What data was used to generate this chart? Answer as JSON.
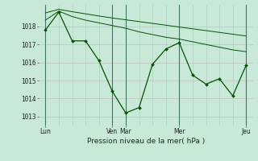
{
  "bg_color": "#c8e8d8",
  "grid_color_v": "#b0c8c0",
  "grid_color_h": "#c0b8b8",
  "line_color": "#005500",
  "xlabel": "Pression niveau de la mer( hPa )",
  "ylim": [
    1012.5,
    1019.2
  ],
  "yticks": [
    1013,
    1014,
    1015,
    1016,
    1017,
    1018
  ],
  "day_labels": [
    "Lun",
    "Ven",
    "Mar",
    "Mer",
    "Jeu"
  ],
  "day_x": [
    0,
    5,
    6,
    10,
    15
  ],
  "num_cols": 16,
  "line1_x": [
    0,
    1,
    2,
    3,
    4,
    5,
    6,
    7,
    8,
    9,
    10,
    11,
    12,
    13,
    14,
    15
  ],
  "line1_y": [
    1017.8,
    1018.8,
    1017.2,
    1017.2,
    1016.1,
    1014.4,
    1013.2,
    1013.5,
    1015.9,
    1016.75,
    1017.1,
    1015.3,
    1014.8,
    1015.1,
    1014.15,
    1015.85
  ],
  "line2_x": [
    0,
    1,
    2,
    3,
    5,
    6,
    7,
    8,
    9,
    10,
    11,
    12,
    13,
    14,
    15
  ],
  "line2_y": [
    1018.35,
    1018.85,
    1018.55,
    1018.35,
    1018.05,
    1017.9,
    1017.7,
    1017.55,
    1017.4,
    1017.3,
    1017.15,
    1017.0,
    1016.85,
    1016.7,
    1016.6
  ],
  "line3_x": [
    0,
    1,
    2,
    3,
    4,
    5,
    6,
    7,
    8,
    9,
    10,
    11,
    12,
    13,
    14,
    15
  ],
  "line3_y": [
    1018.75,
    1018.95,
    1018.82,
    1018.7,
    1018.58,
    1018.47,
    1018.37,
    1018.27,
    1018.17,
    1018.07,
    1017.97,
    1017.87,
    1017.77,
    1017.67,
    1017.57,
    1017.47
  ]
}
